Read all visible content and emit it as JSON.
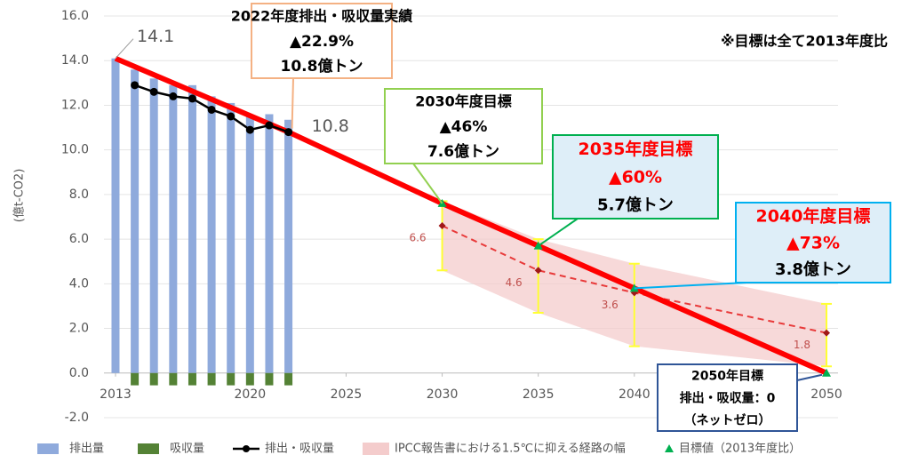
{
  "chart_data": {
    "type": "combo",
    "note": "※目標は全て2013年度比",
    "y_label": "(億t-CO2)",
    "xlim": [
      2012.4,
      2050.6
    ],
    "xticks": [
      2013,
      2020,
      2025,
      2030,
      2035,
      2040,
      2050
    ],
    "ylim": [
      -2,
      16
    ],
    "yticks": [
      {
        "value": -2,
        "label": "-2.0"
      },
      {
        "value": 0,
        "label": "0.0"
      },
      {
        "value": 2,
        "label": "2.0"
      },
      {
        "value": 4,
        "label": "4.0"
      },
      {
        "value": 6,
        "label": "6.0"
      },
      {
        "value": 8,
        "label": "8.0"
      },
      {
        "value": 10,
        "label": "10.0"
      },
      {
        "value": 12,
        "label": "12.0"
      },
      {
        "value": 14,
        "label": "14.0"
      },
      {
        "value": 16,
        "label": "16.0"
      }
    ],
    "grid": true,
    "bars": [
      {
        "name": "排出量",
        "color": "#8faadc",
        "x": [
          2013,
          2014,
          2015,
          2016,
          2017,
          2018,
          2019,
          2020,
          2021,
          2022
        ],
        "values": [
          14.1,
          13.6,
          13.2,
          12.9,
          12.9,
          12.4,
          12.1,
          11.5,
          11.6,
          11.35
        ]
      },
      {
        "name": "吸収量",
        "color": "#548235",
        "x": [
          2013,
          2014,
          2015,
          2016,
          2017,
          2018,
          2019,
          2020,
          2021,
          2022
        ],
        "values": [
          null,
          -0.55,
          -0.55,
          -0.55,
          -0.55,
          -0.55,
          -0.55,
          -0.55,
          -0.55,
          -0.55
        ]
      }
    ],
    "line": {
      "name": "排出・吸収量",
      "color": "#000000",
      "x": [
        2014,
        2015,
        2016,
        2017,
        2018,
        2019,
        2020,
        2021,
        2022
      ],
      "values": [
        12.9,
        12.6,
        12.4,
        12.3,
        11.8,
        11.5,
        10.9,
        11.1,
        10.8
      ]
    },
    "path": {
      "color": "#ff0000",
      "x": [
        2013,
        2022,
        2030,
        2035,
        2040,
        2050
      ],
      "values": [
        14.1,
        10.8,
        7.6,
        5.7,
        3.8,
        0
      ]
    },
    "ipcc": {
      "name": "IPCC報告書における1.5℃に抑える経路の幅",
      "color": "#f4cccc",
      "median_color": "#e83a3a",
      "bar_color": "#ffff33",
      "x": [
        2030,
        2035,
        2040,
        2050
      ],
      "median": [
        6.6,
        4.6,
        3.6,
        1.8
      ],
      "low": [
        4.6,
        2.7,
        1.2,
        0.3
      ],
      "high": [
        7.7,
        6.0,
        4.9,
        3.1
      ]
    },
    "targets": {
      "name": "目標値（2013年度比）",
      "color": "#00b050",
      "x": [
        2030,
        2035,
        2040,
        2050
      ],
      "values": [
        7.6,
        5.7,
        3.8,
        0
      ]
    },
    "callouts": [
      {
        "lines": [
          "2022年度排出・吸収量実績",
          "▲22.9%",
          "10.8億トン"
        ],
        "colors": [
          "#000000",
          "#000000",
          "#000000"
        ],
        "border": "#f4b183",
        "fill": "#ffffff"
      },
      {
        "lines": [
          "2030年度目標",
          "▲46%",
          "7.6億トン"
        ],
        "colors": [
          "#000000",
          "#000000",
          "#000000"
        ],
        "border": "#92d050",
        "fill": "#ffffff"
      },
      {
        "lines": [
          "2035年度目標",
          "▲60%",
          "5.7億トン"
        ],
        "colors": [
          "#ff0000",
          "#ff0000",
          "#000000"
        ],
        "border": "#00b050",
        "fill": "#deeef8"
      },
      {
        "lines": [
          "2040年度目標",
          "▲73%",
          "3.8億トン"
        ],
        "colors": [
          "#ff0000",
          "#ff0000",
          "#000000"
        ],
        "border": "#00b0f0",
        "fill": "#deeef8"
      },
      {
        "lines": [
          "2050年目標",
          "排出・吸収量：0",
          "（ネットゼロ）"
        ],
        "colors": [
          "#000000",
          "#000000",
          "#000000"
        ],
        "border": "#2f5597",
        "fill": "#ffffff"
      }
    ]
  }
}
